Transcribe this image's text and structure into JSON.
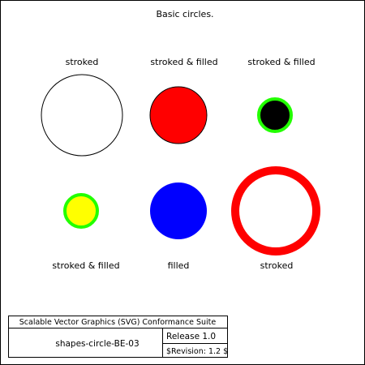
{
  "page": {
    "title": "Basic circles."
  },
  "circles": [
    {
      "label": "stroked",
      "fill": "#ffffff",
      "stroke": "#000000"
    },
    {
      "label": "stroked & filled",
      "fill": "#ff0000",
      "stroke": "#000000"
    },
    {
      "label": "stroked & filled",
      "fill": "#000000",
      "stroke": "#22ff00"
    },
    {
      "label": "stroked & filled",
      "fill": "#ffff00",
      "stroke": "#22ff00"
    },
    {
      "label": "filled",
      "fill": "#0000ff",
      "stroke": "none"
    },
    {
      "label": "stroked",
      "fill": "#ffffff",
      "stroke": "#ff0000"
    }
  ],
  "footer": {
    "suite": "Scalable Vector Graphics (SVG) Conformance Suite",
    "test_name": "shapes-circle-BE-03",
    "release": "Release 1.0",
    "revision": "$Revision: 1.2 $"
  }
}
